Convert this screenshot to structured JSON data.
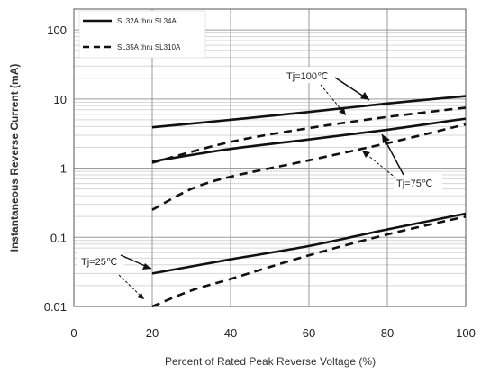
{
  "chart_data": {
    "type": "line",
    "xlabel": "Percent of  Rated Peak Reverse Voltage (%)",
    "ylabel": "Instantaneous Reverse Current (mA)",
    "xlim": [
      0,
      100
    ],
    "ylim": [
      0.01,
      200
    ],
    "yscale": "log",
    "grid": true,
    "legend_position": "top-left",
    "x_ticks": [
      "0",
      "20",
      "40",
      "60",
      "80",
      "100"
    ],
    "y_ticks": [
      "0.01",
      "0.1",
      "1",
      "10",
      "100"
    ],
    "legend": [
      {
        "label": "SL32A thru SL34A",
        "style": "solid"
      },
      {
        "label": "SL35A thru SL310A",
        "style": "dashed"
      }
    ],
    "annotations": [
      {
        "text": "Tj=100℃"
      },
      {
        "text": "Tj=75℃"
      },
      {
        "text": "Tj=25℃"
      }
    ],
    "series": [
      {
        "group": "SL32A thru SL34A",
        "condition": "Tj=100℃",
        "style": "solid",
        "x": [
          20,
          40,
          60,
          80,
          100
        ],
        "y": [
          3.9,
          5.0,
          6.5,
          8.6,
          11.0
        ]
      },
      {
        "group": "SL35A thru SL310A",
        "condition": "Tj=100℃",
        "style": "dashed",
        "x": [
          20,
          40,
          60,
          80,
          100
        ],
        "y": [
          1.2,
          2.4,
          3.8,
          5.5,
          7.5
        ]
      },
      {
        "group": "SL32A thru SL34A",
        "condition": "Tj=75℃",
        "style": "solid",
        "x": [
          20,
          40,
          60,
          80,
          100
        ],
        "y": [
          1.25,
          1.9,
          2.6,
          3.6,
          5.2
        ]
      },
      {
        "group": "SL35A thru SL310A",
        "condition": "Tj=75℃",
        "style": "dashed",
        "x": [
          20,
          30,
          40,
          60,
          80,
          100
        ],
        "y": [
          0.25,
          0.5,
          0.75,
          1.3,
          2.3,
          4.3
        ]
      },
      {
        "group": "SL32A thru SL34A",
        "condition": "Tj=25℃",
        "style": "solid",
        "x": [
          20,
          40,
          60,
          80,
          100
        ],
        "y": [
          0.03,
          0.048,
          0.075,
          0.13,
          0.22
        ]
      },
      {
        "group": "SL35A thru SL310A",
        "condition": "Tj=25℃",
        "style": "dashed",
        "x": [
          20,
          30,
          40,
          60,
          80,
          100
        ],
        "y": [
          0.01,
          0.017,
          0.025,
          0.055,
          0.11,
          0.2
        ]
      }
    ]
  }
}
